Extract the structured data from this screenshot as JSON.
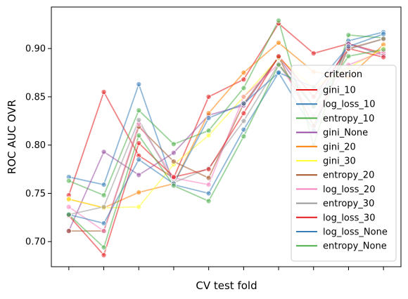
{
  "chart_data": {
    "type": "line",
    "xlabel": "CV test fold",
    "ylabel": "ROC AUC OVR",
    "x": [
      0,
      1,
      2,
      3,
      4,
      5,
      6,
      7,
      8,
      9
    ],
    "x_ticklabels": [
      "",
      "",
      "",
      "",
      "",
      "",
      "",
      "",
      "",
      ""
    ],
    "ylim": [
      0.674,
      0.943
    ],
    "yticks": [
      0.7,
      0.75,
      0.8,
      0.85,
      0.9
    ],
    "ytick_labels": [
      "0.70",
      "0.75",
      "0.80",
      "0.85",
      "0.90"
    ],
    "legend": {
      "title": "criterion",
      "placement": "center-right"
    },
    "series": [
      {
        "name": "gini_10",
        "color": "#e41a1c",
        "values": [
          0.748,
          0.855,
          0.789,
          0.766,
          0.85,
          0.868,
          0.926,
          0.895,
          0.905,
          0.895
        ]
      },
      {
        "name": "log_loss_10",
        "color": "#377eb8",
        "values": [
          0.767,
          0.759,
          0.863,
          0.759,
          0.75,
          0.816,
          0.875,
          0.815,
          0.908,
          0.917
        ]
      },
      {
        "name": "entropy_10",
        "color": "#4daf4a",
        "values": [
          0.763,
          0.748,
          0.836,
          0.801,
          0.815,
          0.859,
          0.929,
          0.8,
          0.914,
          0.911
        ]
      },
      {
        "name": "gini_None",
        "color": "#984ea3",
        "values": [
          0.711,
          0.793,
          0.769,
          0.792,
          0.831,
          0.841,
          0.891,
          0.84,
          0.905,
          0.893
        ]
      },
      {
        "name": "gini_20",
        "color": "#ff7f00",
        "values": [
          0.744,
          0.735,
          0.751,
          0.76,
          0.833,
          0.875,
          0.906,
          0.876,
          0.87,
          0.904
        ]
      },
      {
        "name": "gini_30",
        "color": "#ffff33",
        "values": [
          0.744,
          0.735,
          0.736,
          0.78,
          0.81,
          0.85,
          0.89,
          0.86,
          0.88,
          0.9
        ]
      },
      {
        "name": "entropy_20",
        "color": "#a65628",
        "values": [
          0.711,
          0.711,
          0.819,
          0.783,
          0.766,
          0.843,
          0.891,
          0.82,
          0.9,
          0.91
        ]
      },
      {
        "name": "log_loss_20",
        "color": "#f781bf",
        "values": [
          0.736,
          0.711,
          0.822,
          0.766,
          0.759,
          0.85,
          0.884,
          0.83,
          0.883,
          0.897
        ]
      },
      {
        "name": "entropy_30",
        "color": "#999999",
        "values": [
          0.728,
          0.736,
          0.826,
          0.761,
          0.776,
          0.825,
          0.884,
          0.84,
          0.899,
          0.91
        ]
      },
      {
        "name": "log_loss_30",
        "color": "#e41a1c",
        "values": [
          0.727,
          0.686,
          0.802,
          0.767,
          0.775,
          0.833,
          0.892,
          0.85,
          0.9,
          0.891
        ]
      },
      {
        "name": "log_loss_None",
        "color": "#377eb8",
        "values": [
          0.728,
          0.719,
          0.785,
          0.76,
          0.828,
          0.843,
          0.875,
          0.86,
          0.902,
          0.915
        ]
      },
      {
        "name": "entropy_None",
        "color": "#4daf4a",
        "values": [
          0.728,
          0.694,
          0.81,
          0.758,
          0.742,
          0.809,
          0.883,
          0.84,
          0.892,
          0.899
        ]
      }
    ]
  }
}
